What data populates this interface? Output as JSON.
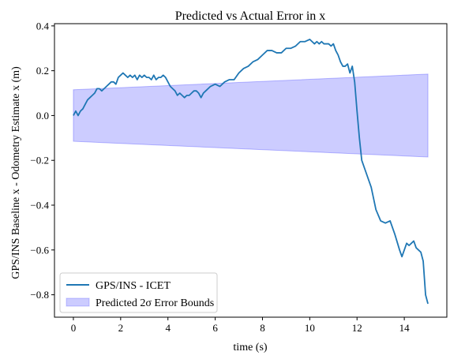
{
  "chart_data": {
    "type": "line",
    "title": "Predicted vs Actual Error in x",
    "xlabel": "time (s)",
    "ylabel": "GPS/INS Baseline x - Odometry Estimate x (m)",
    "xlim": [
      -0.8,
      15.8
    ],
    "ylim": [
      -0.9,
      0.41
    ],
    "xticks": [
      0,
      2,
      4,
      6,
      8,
      10,
      12,
      14
    ],
    "yticks": [
      -0.8,
      -0.6,
      -0.4,
      -0.2,
      0.0,
      0.2,
      0.4
    ],
    "xtick_labels": [
      "0",
      "2",
      "4",
      "6",
      "8",
      "10",
      "12",
      "14"
    ],
    "ytick_labels": [
      "−0.8",
      "−0.6",
      "−0.4",
      "−0.2",
      "0.0",
      "0.2",
      "0.4"
    ],
    "grid": false,
    "legend_position": "lower left",
    "series": [
      {
        "name": "GPS/INS - ICET",
        "kind": "line",
        "color": "#1f77b4",
        "x": [
          0,
          0.1,
          0.2,
          0.3,
          0.4,
          0.5,
          0.6,
          0.7,
          0.8,
          0.9,
          1.0,
          1.1,
          1.2,
          1.3,
          1.4,
          1.5,
          1.6,
          1.7,
          1.8,
          1.9,
          2.0,
          2.1,
          2.2,
          2.3,
          2.4,
          2.5,
          2.6,
          2.7,
          2.8,
          2.9,
          3.0,
          3.1,
          3.2,
          3.3,
          3.4,
          3.5,
          3.6,
          3.7,
          3.8,
          3.9,
          4.0,
          4.1,
          4.2,
          4.3,
          4.4,
          4.5,
          4.6,
          4.7,
          4.8,
          4.9,
          5.0,
          5.1,
          5.2,
          5.3,
          5.4,
          5.5,
          5.6,
          5.8,
          6.0,
          6.2,
          6.4,
          6.6,
          6.8,
          7.0,
          7.2,
          7.4,
          7.6,
          7.8,
          8.0,
          8.2,
          8.4,
          8.6,
          8.8,
          9.0,
          9.2,
          9.4,
          9.6,
          9.8,
          10.0,
          10.1,
          10.2,
          10.3,
          10.4,
          10.5,
          10.6,
          10.7,
          10.8,
          10.9,
          11.0,
          11.1,
          11.2,
          11.3,
          11.4,
          11.5,
          11.6,
          11.7,
          11.8,
          11.9,
          12.0,
          12.1,
          12.2,
          12.4,
          12.6,
          12.8,
          13.0,
          13.2,
          13.4,
          13.6,
          13.8,
          13.9,
          14.0,
          14.1,
          14.2,
          14.3,
          14.4,
          14.5,
          14.6,
          14.7,
          14.8,
          14.9,
          15.0
        ],
        "y": [
          0.0,
          0.02,
          0.0,
          0.02,
          0.03,
          0.05,
          0.07,
          0.08,
          0.09,
          0.1,
          0.12,
          0.12,
          0.11,
          0.12,
          0.13,
          0.14,
          0.15,
          0.15,
          0.14,
          0.17,
          0.18,
          0.19,
          0.18,
          0.17,
          0.18,
          0.17,
          0.18,
          0.16,
          0.18,
          0.17,
          0.18,
          0.17,
          0.17,
          0.16,
          0.18,
          0.16,
          0.17,
          0.17,
          0.18,
          0.17,
          0.15,
          0.13,
          0.12,
          0.11,
          0.09,
          0.1,
          0.09,
          0.08,
          0.09,
          0.09,
          0.1,
          0.11,
          0.11,
          0.1,
          0.08,
          0.1,
          0.11,
          0.13,
          0.14,
          0.13,
          0.15,
          0.16,
          0.16,
          0.19,
          0.21,
          0.22,
          0.24,
          0.25,
          0.27,
          0.29,
          0.29,
          0.28,
          0.28,
          0.3,
          0.3,
          0.31,
          0.33,
          0.33,
          0.34,
          0.33,
          0.32,
          0.33,
          0.32,
          0.33,
          0.32,
          0.32,
          0.32,
          0.31,
          0.32,
          0.29,
          0.27,
          0.24,
          0.22,
          0.22,
          0.23,
          0.19,
          0.22,
          0.15,
          0.02,
          -0.1,
          -0.2,
          -0.26,
          -0.32,
          -0.42,
          -0.47,
          -0.48,
          -0.47,
          -0.53,
          -0.6,
          -0.63,
          -0.6,
          -0.57,
          -0.58,
          -0.57,
          -0.56,
          -0.59,
          -0.6,
          -0.61,
          -0.65,
          -0.8,
          -0.84
        ]
      },
      {
        "name": "Predicted 2σ Error Bounds",
        "kind": "band",
        "color": "#0000ff",
        "x": [
          0,
          15
        ],
        "upper": [
          0.115,
          0.185
        ],
        "lower": [
          -0.115,
          -0.185
        ]
      }
    ]
  }
}
